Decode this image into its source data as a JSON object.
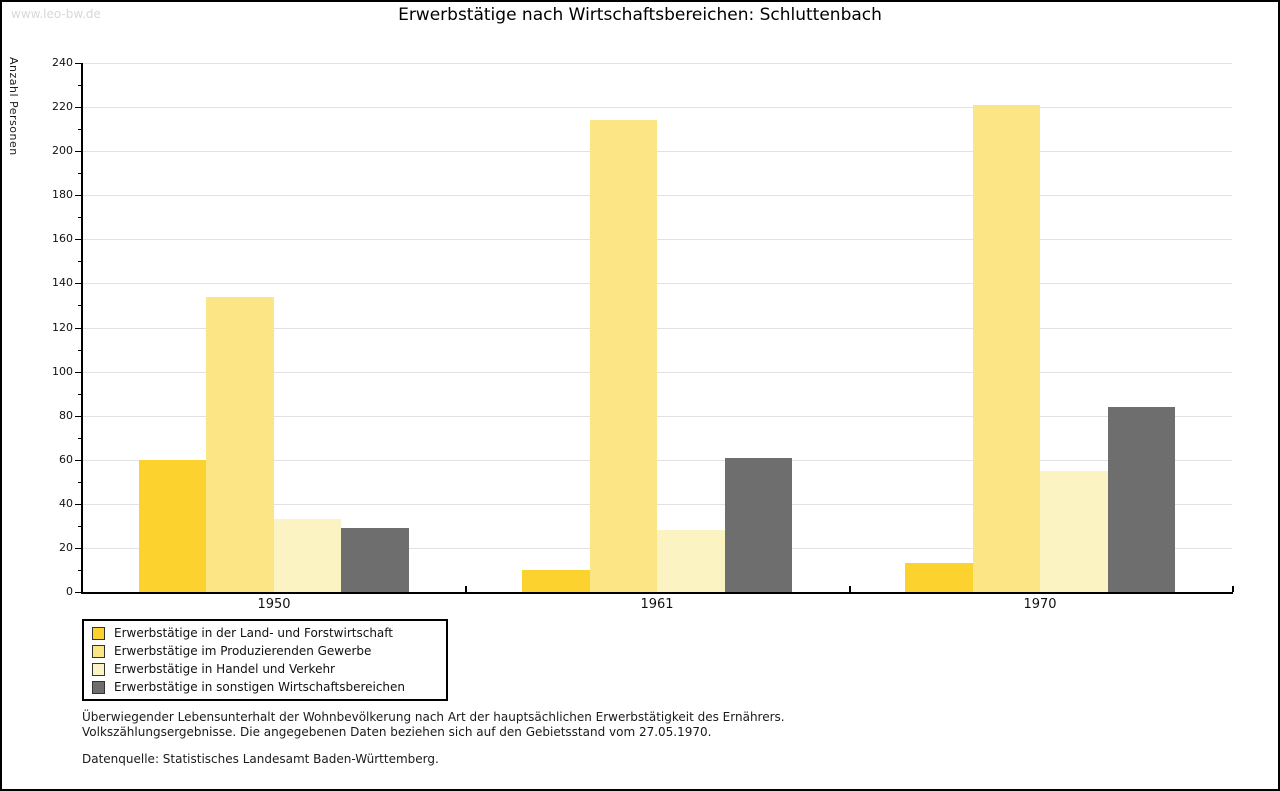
{
  "watermark": "www.leo-bw.de",
  "title": "Erwerbstätige nach Wirtschaftsbereichen: Schluttenbach",
  "chart_data": {
    "type": "bar",
    "title": "Erwerbstätige nach Wirtschaftsbereichen: Schluttenbach",
    "xlabel": "",
    "ylabel": "Anzahl Personen",
    "categories": [
      "1950",
      "1961",
      "1970"
    ],
    "series": [
      {
        "name": "Erwerbstätige in der Land- und Forstwirtschaft",
        "color": "#fcd22e",
        "values": [
          60,
          10,
          13
        ]
      },
      {
        "name": "Erwerbstätige im Produzierenden Gewerbe",
        "color": "#fce584",
        "values": [
          134,
          214,
          221
        ]
      },
      {
        "name": "Erwerbstätige in Handel und Verkehr",
        "color": "#fcf3c3",
        "values": [
          33,
          28,
          55
        ]
      },
      {
        "name": "Erwerbstätige in sonstigen Wirtschaftsbereichen",
        "color": "#6e6e6e",
        "values": [
          29,
          61,
          84
        ]
      }
    ],
    "ylim": [
      0,
      240
    ],
    "ytick_step": 20,
    "ytick_minor_step": 10,
    "grid": true,
    "legend_position": "bottom-left",
    "gridline_color": "#e2e2e2"
  },
  "footer": {
    "note_line1": "Überwiegender Lebensunterhalt der Wohnbevölkerung nach Art der hauptsächlichen Erwerbstätigkeit des Ernährers.",
    "note_line2": "Volkszählungsergebnisse. Die angegebenen Daten beziehen sich auf den Gebietsstand vom 27.05.1970.",
    "source": "Datenquelle: Statistisches Landesamt Baden-Württemberg."
  }
}
